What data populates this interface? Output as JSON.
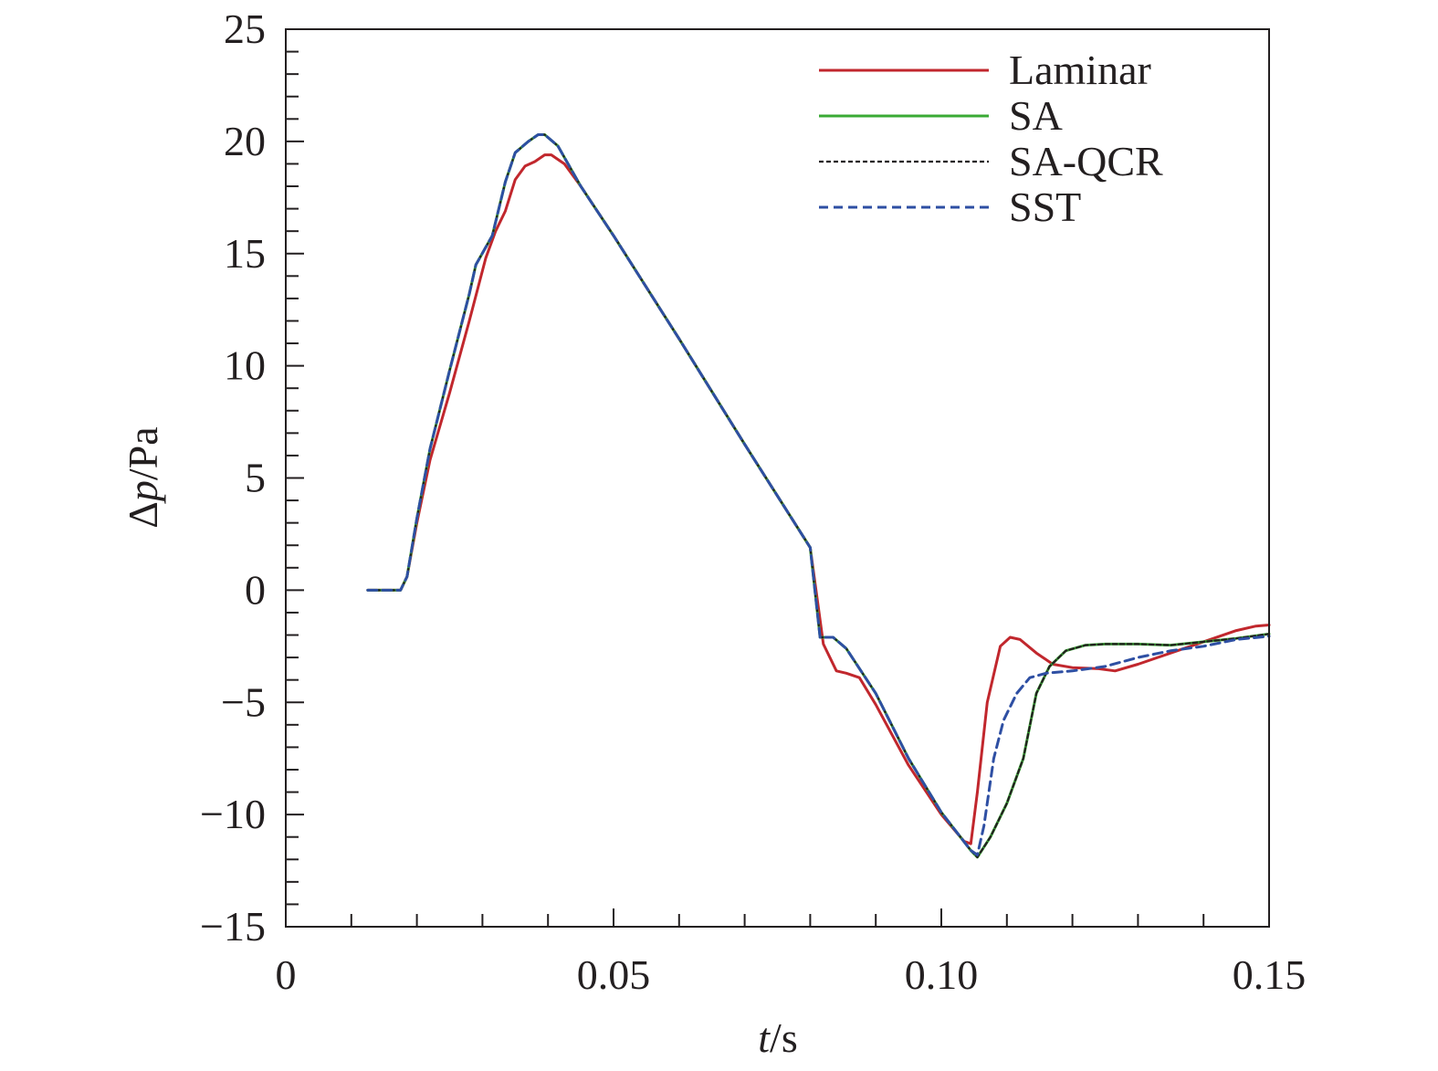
{
  "chart_data": {
    "type": "line",
    "title": "",
    "xlabel": {
      "var": "t",
      "unit": "/s"
    },
    "ylabel": {
      "var": "Δp",
      "unit": "/Pa"
    },
    "xlim": [
      0,
      0.15
    ],
    "ylim": [
      -15,
      25
    ],
    "x_ticks": [
      0,
      0.05,
      0.1,
      0.15
    ],
    "x_tick_labels": [
      "0",
      "0.05",
      "0.10",
      "0.15"
    ],
    "x_minor_step": 0.01,
    "y_ticks": [
      -15,
      -10,
      -5,
      0,
      5,
      10,
      15,
      20,
      25
    ],
    "y_tick_labels": [
      "−15",
      "−10",
      "−5",
      "0",
      "5",
      "10",
      "15",
      "20",
      "25"
    ],
    "y_minor_step": 1,
    "grid": false,
    "legend": "top-right",
    "series": [
      {
        "name": "Laminar",
        "color": "#c1272d",
        "style": "solid",
        "points": [
          [
            0.0125,
            0
          ],
          [
            0.0175,
            0
          ],
          [
            0.0185,
            0.6
          ],
          [
            0.02,
            3.0
          ],
          [
            0.022,
            5.8
          ],
          [
            0.025,
            8.8
          ],
          [
            0.028,
            12.0
          ],
          [
            0.0305,
            14.8
          ],
          [
            0.032,
            16.0
          ],
          [
            0.0335,
            16.9
          ],
          [
            0.035,
            18.3
          ],
          [
            0.0365,
            18.9
          ],
          [
            0.038,
            19.1
          ],
          [
            0.0395,
            19.4
          ],
          [
            0.0405,
            19.4
          ],
          [
            0.0425,
            19.0
          ],
          [
            0.045,
            18.0
          ],
          [
            0.05,
            15.8
          ],
          [
            0.06,
            11.2
          ],
          [
            0.07,
            6.5
          ],
          [
            0.08,
            1.9
          ],
          [
            0.082,
            -2.4
          ],
          [
            0.084,
            -3.6
          ],
          [
            0.0855,
            -3.7
          ],
          [
            0.0875,
            -3.9
          ],
          [
            0.09,
            -5.1
          ],
          [
            0.095,
            -7.8
          ],
          [
            0.1,
            -10.0
          ],
          [
            0.1035,
            -11.2
          ],
          [
            0.1045,
            -11.3
          ],
          [
            0.1055,
            -9.0
          ],
          [
            0.107,
            -5.0
          ],
          [
            0.109,
            -2.5
          ],
          [
            0.1105,
            -2.1
          ],
          [
            0.112,
            -2.2
          ],
          [
            0.1145,
            -2.8
          ],
          [
            0.117,
            -3.3
          ],
          [
            0.12,
            -3.45
          ],
          [
            0.124,
            -3.5
          ],
          [
            0.1265,
            -3.6
          ],
          [
            0.13,
            -3.3
          ],
          [
            0.135,
            -2.8
          ],
          [
            0.14,
            -2.3
          ],
          [
            0.145,
            -1.8
          ],
          [
            0.148,
            -1.6
          ],
          [
            0.15,
            -1.55
          ]
        ]
      },
      {
        "name": "SA",
        "color": "#3aaa35",
        "style": "solid",
        "points": [
          [
            0.0125,
            0
          ],
          [
            0.0175,
            0
          ],
          [
            0.0185,
            0.6
          ],
          [
            0.02,
            3.2
          ],
          [
            0.022,
            6.3
          ],
          [
            0.025,
            9.8
          ],
          [
            0.028,
            13.2
          ],
          [
            0.029,
            14.5
          ],
          [
            0.0315,
            15.8
          ],
          [
            0.0335,
            18.2
          ],
          [
            0.035,
            19.5
          ],
          [
            0.037,
            20.0
          ],
          [
            0.0385,
            20.3
          ],
          [
            0.0395,
            20.3
          ],
          [
            0.0415,
            19.8
          ],
          [
            0.045,
            18.0
          ],
          [
            0.05,
            15.8
          ],
          [
            0.06,
            11.2
          ],
          [
            0.07,
            6.5
          ],
          [
            0.08,
            1.9
          ],
          [
            0.0815,
            -2.1
          ],
          [
            0.0835,
            -2.1
          ],
          [
            0.0855,
            -2.6
          ],
          [
            0.09,
            -4.6
          ],
          [
            0.095,
            -7.5
          ],
          [
            0.1,
            -9.9
          ],
          [
            0.1045,
            -11.6
          ],
          [
            0.1055,
            -11.9
          ],
          [
            0.1075,
            -11.0
          ],
          [
            0.11,
            -9.5
          ],
          [
            0.1125,
            -7.5
          ],
          [
            0.1145,
            -4.6
          ],
          [
            0.1165,
            -3.4
          ],
          [
            0.119,
            -2.7
          ],
          [
            0.122,
            -2.45
          ],
          [
            0.125,
            -2.4
          ],
          [
            0.13,
            -2.4
          ],
          [
            0.135,
            -2.45
          ],
          [
            0.14,
            -2.3
          ],
          [
            0.145,
            -2.15
          ],
          [
            0.15,
            -1.95
          ]
        ]
      },
      {
        "name": "SA-QCR",
        "color": "#231f20",
        "style": "dashed-fine",
        "points": [
          [
            0.0125,
            0
          ],
          [
            0.0175,
            0
          ],
          [
            0.0185,
            0.6
          ],
          [
            0.02,
            3.2
          ],
          [
            0.022,
            6.3
          ],
          [
            0.025,
            9.8
          ],
          [
            0.028,
            13.2
          ],
          [
            0.029,
            14.5
          ],
          [
            0.0315,
            15.8
          ],
          [
            0.0335,
            18.2
          ],
          [
            0.035,
            19.5
          ],
          [
            0.037,
            20.0
          ],
          [
            0.0385,
            20.3
          ],
          [
            0.0395,
            20.3
          ],
          [
            0.0415,
            19.8
          ],
          [
            0.045,
            18.0
          ],
          [
            0.05,
            15.8
          ],
          [
            0.06,
            11.2
          ],
          [
            0.07,
            6.5
          ],
          [
            0.08,
            1.9
          ],
          [
            0.0815,
            -2.1
          ],
          [
            0.0835,
            -2.1
          ],
          [
            0.0855,
            -2.6
          ],
          [
            0.09,
            -4.6
          ],
          [
            0.095,
            -7.5
          ],
          [
            0.1,
            -9.9
          ],
          [
            0.1045,
            -11.6
          ],
          [
            0.1055,
            -11.9
          ],
          [
            0.1075,
            -11.0
          ],
          [
            0.11,
            -9.5
          ],
          [
            0.1125,
            -7.5
          ],
          [
            0.1145,
            -4.6
          ],
          [
            0.1165,
            -3.4
          ],
          [
            0.119,
            -2.7
          ],
          [
            0.122,
            -2.45
          ],
          [
            0.125,
            -2.4
          ],
          [
            0.13,
            -2.4
          ],
          [
            0.135,
            -2.45
          ],
          [
            0.14,
            -2.3
          ],
          [
            0.145,
            -2.15
          ],
          [
            0.15,
            -1.95
          ]
        ]
      },
      {
        "name": "SST",
        "color": "#2e4fa3",
        "style": "dashed",
        "points": [
          [
            0.0125,
            0
          ],
          [
            0.0175,
            0
          ],
          [
            0.0185,
            0.6
          ],
          [
            0.02,
            3.2
          ],
          [
            0.022,
            6.3
          ],
          [
            0.025,
            9.8
          ],
          [
            0.028,
            13.2
          ],
          [
            0.029,
            14.5
          ],
          [
            0.0315,
            15.8
          ],
          [
            0.0335,
            18.2
          ],
          [
            0.035,
            19.5
          ],
          [
            0.037,
            20.0
          ],
          [
            0.0385,
            20.3
          ],
          [
            0.0395,
            20.3
          ],
          [
            0.0415,
            19.8
          ],
          [
            0.045,
            18.0
          ],
          [
            0.05,
            15.8
          ],
          [
            0.06,
            11.2
          ],
          [
            0.07,
            6.5
          ],
          [
            0.08,
            1.9
          ],
          [
            0.0815,
            -2.1
          ],
          [
            0.0835,
            -2.1
          ],
          [
            0.0855,
            -2.6
          ],
          [
            0.09,
            -4.6
          ],
          [
            0.095,
            -7.5
          ],
          [
            0.1,
            -9.9
          ],
          [
            0.1045,
            -11.6
          ],
          [
            0.1055,
            -11.8
          ],
          [
            0.1065,
            -10.5
          ],
          [
            0.108,
            -7.5
          ],
          [
            0.1095,
            -5.8
          ],
          [
            0.1115,
            -4.6
          ],
          [
            0.1135,
            -3.9
          ],
          [
            0.116,
            -3.7
          ],
          [
            0.12,
            -3.6
          ],
          [
            0.125,
            -3.4
          ],
          [
            0.13,
            -3.0
          ],
          [
            0.135,
            -2.7
          ],
          [
            0.14,
            -2.5
          ],
          [
            0.145,
            -2.2
          ],
          [
            0.15,
            -2.05
          ]
        ]
      }
    ]
  }
}
